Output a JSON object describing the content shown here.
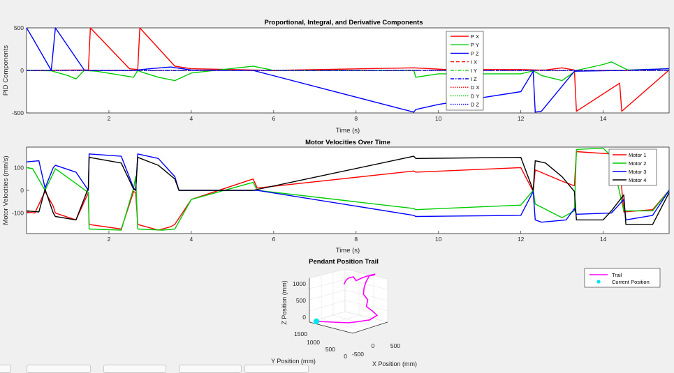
{
  "window": {
    "background": "#f0f0f0"
  },
  "colors": {
    "red": "#ff0000",
    "green": "#00cc00",
    "blue": "#0000ff",
    "black": "#000000",
    "magenta": "#ff00ff",
    "cyan": "#00e5ee"
  },
  "chart_data": [
    {
      "type": "line",
      "title": "Proportional, Integral, and Derivative Components",
      "xlabel": "Time (s)",
      "ylabel": "PID Components",
      "xlim": [
        0,
        15.6
      ],
      "ylim": [
        -500,
        500
      ],
      "xticks": [
        "2",
        "4",
        "6",
        "8",
        "10",
        "12",
        "14"
      ],
      "yticks": [
        "500",
        "0",
        "-500"
      ],
      "legend_position": "top-right-inside",
      "series": [
        {
          "name": "P X",
          "color": "#ff0000",
          "dash": "solid",
          "x": [
            0,
            1.2,
            1.5,
            1.55,
            2.5,
            2.7,
            2.75,
            3.6,
            4.0,
            5.5,
            6.0,
            9.4,
            10.2,
            10.5,
            12.0,
            12.4,
            12.6,
            13.0,
            13.3,
            13.35,
            14.4,
            14.45,
            15.6
          ],
          "y": [
            0,
            5,
            5,
            500,
            20,
            10,
            500,
            50,
            20,
            5,
            0,
            30,
            10,
            10,
            10,
            5,
            5,
            30,
            5,
            -480,
            -150,
            -480,
            5
          ]
        },
        {
          "name": "P Y",
          "color": "#00cc00",
          "dash": "solid",
          "x": [
            0,
            0.6,
            1.0,
            1.2,
            1.4,
            1.7,
            2.6,
            2.7,
            2.8,
            3.2,
            3.6,
            4.0,
            5.5,
            6.0,
            9.4,
            9.45,
            10.0,
            12.0,
            12.3,
            12.4,
            12.5,
            13.0,
            13.35,
            14.0,
            14.2,
            14.6,
            15.6
          ],
          "y": [
            0,
            -5,
            -60,
            -100,
            0,
            -10,
            -80,
            0,
            -20,
            -80,
            -120,
            -30,
            50,
            0,
            0,
            -80,
            -40,
            -40,
            -5,
            -30,
            -60,
            -120,
            0,
            70,
            100,
            5,
            20
          ]
        },
        {
          "name": "P Z",
          "color": "#0000ff",
          "dash": "solid",
          "x": [
            0,
            0.15,
            0.6,
            0.7,
            1.4,
            1.6,
            2.6,
            3.0,
            3.5,
            4.0,
            5.5,
            9.4,
            9.45,
            10.0,
            12.0,
            12.3,
            12.35,
            12.5,
            13.3,
            14.5,
            15.6
          ],
          "y": [
            500,
            380,
            0,
            500,
            5,
            0,
            0,
            20,
            40,
            5,
            0,
            -490,
            -460,
            -400,
            -250,
            -10,
            -490,
            -480,
            -10,
            0,
            20
          ]
        },
        {
          "name": "I X",
          "color": "#ff0000",
          "dash": "5,3",
          "x": [
            0,
            15.6
          ],
          "y": [
            0,
            0
          ]
        },
        {
          "name": "I Y",
          "color": "#00cc00",
          "dash": "5,2,1.5,2",
          "x": [
            0,
            15.6
          ],
          "y": [
            0,
            0
          ]
        },
        {
          "name": "I Z",
          "color": "#0000ff",
          "dash": "5,2,1.5,2",
          "x": [
            0,
            15.6
          ],
          "y": [
            0,
            0
          ]
        },
        {
          "name": "D X",
          "color": "#ff0000",
          "dash": "1.5,1.5",
          "x": [
            0,
            15.6
          ],
          "y": [
            0,
            0
          ]
        },
        {
          "name": "D Y",
          "color": "#00cc00",
          "dash": "1.5,1.5",
          "x": [
            0,
            15.6
          ],
          "y": [
            0,
            0
          ]
        },
        {
          "name": "D Z",
          "color": "#0000ff",
          "dash": "1.5,1.5",
          "x": [
            0,
            15.6
          ],
          "y": [
            0,
            0
          ]
        }
      ]
    },
    {
      "type": "line",
      "title": "Motor Velocities Over Time",
      "xlabel": "Time (s)",
      "ylabel": "Motor Velocities (mm/s)",
      "xlim": [
        0,
        15.6
      ],
      "ylim": [
        -190,
        190
      ],
      "xticks": [
        "2",
        "4",
        "6",
        "8",
        "10",
        "12",
        "14"
      ],
      "yticks": [
        "100",
        "0",
        "-100"
      ],
      "legend_position": "top-right-inside",
      "series": [
        {
          "name": "Motor 1",
          "color": "#ff0000",
          "x": [
            0,
            0.2,
            0.45,
            0.65,
            0.7,
            1.2,
            1.5,
            1.52,
            2.3,
            2.6,
            2.65,
            2.7,
            3.2,
            3.5,
            3.6,
            4.0,
            5.5,
            5.6,
            9.4,
            9.45,
            12.0,
            12.3,
            12.35,
            13.0,
            13.3,
            13.35,
            14.2,
            14.4,
            14.5,
            15.2,
            15.6
          ],
          "y": [
            -95,
            -100,
            -5,
            -70,
            -100,
            -130,
            -10,
            -150,
            -170,
            -5,
            -10,
            -150,
            -175,
            -160,
            -150,
            -40,
            50,
            10,
            85,
            80,
            100,
            -5,
            90,
            40,
            20,
            170,
            160,
            115,
            -95,
            -85,
            0
          ]
        },
        {
          "name": "Motor 2",
          "color": "#00cc00",
          "x": [
            0,
            0.15,
            0.45,
            0.65,
            0.7,
            1.2,
            1.5,
            1.52,
            2.3,
            2.6,
            2.65,
            2.7,
            3.3,
            3.6,
            4.0,
            5.5,
            5.6,
            9.4,
            9.45,
            12.0,
            12.3,
            12.35,
            13.0,
            13.3,
            13.35,
            14.0,
            14.2,
            14.5,
            15.2,
            15.6
          ],
          "y": [
            100,
            95,
            0,
            75,
            95,
            30,
            -10,
            -170,
            -175,
            10,
            60,
            -170,
            -175,
            -170,
            -40,
            35,
            0,
            -80,
            -85,
            -65,
            0,
            -60,
            -120,
            -90,
            180,
            185,
            150,
            -90,
            -90,
            0
          ]
        },
        {
          "name": "Motor 3",
          "color": "#0000ff",
          "x": [
            0,
            0.3,
            0.45,
            0.65,
            0.7,
            1.2,
            1.5,
            1.52,
            2.3,
            2.6,
            2.65,
            2.7,
            3.2,
            3.6,
            3.7,
            5.5,
            5.6,
            9.4,
            9.45,
            12.0,
            12.3,
            12.35,
            12.5,
            13.1,
            13.3,
            13.35,
            14.2,
            14.5,
            14.55,
            15.2,
            15.6
          ],
          "y": [
            125,
            130,
            10,
            100,
            110,
            80,
            0,
            160,
            150,
            10,
            0,
            160,
            140,
            60,
            0,
            0,
            0,
            -110,
            -115,
            -110,
            -5,
            -130,
            -140,
            -130,
            -80,
            -105,
            -100,
            -40,
            -130,
            -110,
            0
          ]
        },
        {
          "name": "Motor 4",
          "color": "#000000",
          "x": [
            0,
            0.3,
            0.45,
            0.65,
            0.7,
            1.2,
            1.5,
            1.52,
            2.3,
            2.6,
            2.65,
            2.7,
            3.2,
            3.6,
            3.7,
            5.5,
            9.4,
            9.45,
            12.0,
            12.3,
            12.35,
            12.6,
            13.0,
            13.3,
            13.35,
            14.0,
            14.2,
            14.5,
            14.55,
            15.2,
            15.6
          ],
          "y": [
            -90,
            -95,
            5,
            -100,
            -115,
            -130,
            10,
            145,
            120,
            5,
            0,
            145,
            110,
            50,
            0,
            0,
            150,
            140,
            145,
            0,
            130,
            120,
            60,
            -5,
            -130,
            -130,
            -90,
            -20,
            -150,
            -150,
            -10
          ]
        }
      ]
    },
    {
      "type": "scatter3d",
      "title": "Pendant Position Trail",
      "xlabel": "X Position (mm)",
      "ylabel": "Y Position (mm)",
      "zlabel": "Z Position (mm)",
      "zticks": [
        "1000",
        "500",
        "0"
      ],
      "yticks": [
        "1500",
        "1000",
        "500",
        "0"
      ],
      "xticks": [
        "-500",
        "0",
        "500"
      ],
      "series": [
        {
          "name": "Trail",
          "color": "#ff00ff"
        },
        {
          "name": "Current Position",
          "color": "#00e5ee"
        }
      ]
    }
  ]
}
